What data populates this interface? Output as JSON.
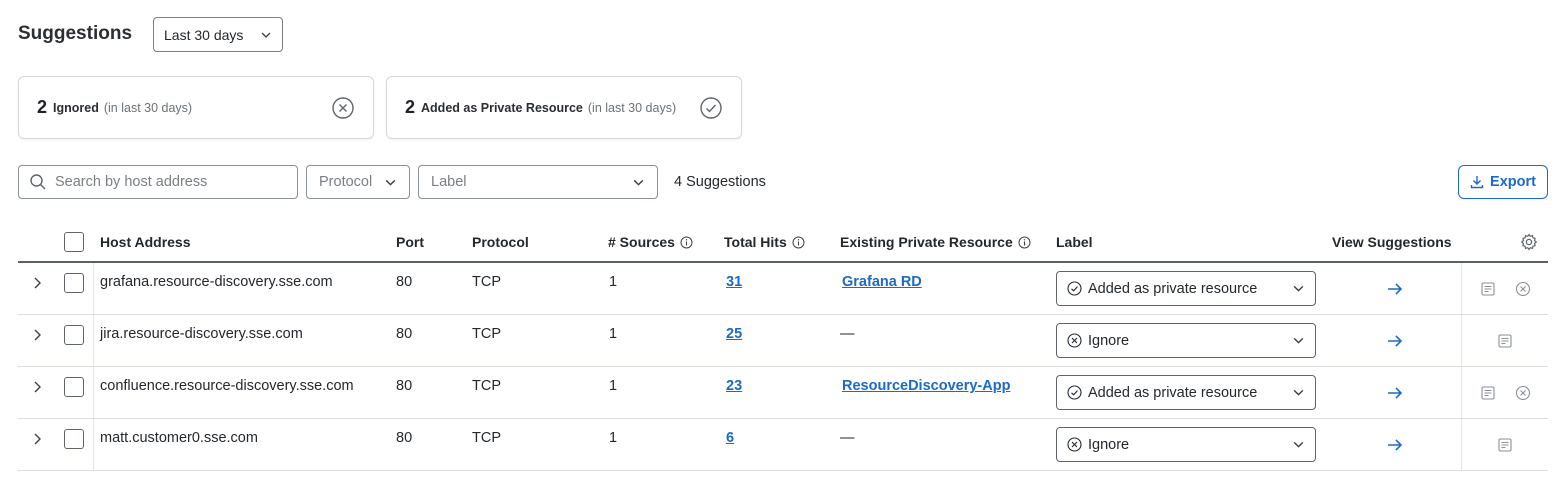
{
  "header": {
    "title": "Suggestions",
    "range_value": "Last 30 days"
  },
  "summary": {
    "ignored": {
      "count": "2",
      "label": "Ignored",
      "sub": "(in last 30 days)"
    },
    "added": {
      "count": "2",
      "label": "Added as Private Resource",
      "sub": "(in last 30 days)"
    }
  },
  "filters": {
    "search_placeholder": "Search by host address",
    "protocol_placeholder": "Protocol",
    "label_placeholder": "Label",
    "result_count": "4 Suggestions",
    "export_label": "Export"
  },
  "table": {
    "columns": {
      "host": "Host Address",
      "port": "Port",
      "protocol": "Protocol",
      "sources": "# Sources",
      "hits": "Total Hits",
      "existing": "Existing Private Resource",
      "label": "Label",
      "view": "View Suggestions"
    },
    "rows": [
      {
        "host": "grafana.resource-discovery.sse.com",
        "port": "80",
        "protocol": "TCP",
        "sources": "1",
        "hits": "31",
        "existing": "Grafana RD",
        "label": "Added as private resource",
        "label_state": "added"
      },
      {
        "host": "jira.resource-discovery.sse.com",
        "port": "80",
        "protocol": "TCP",
        "sources": "1",
        "hits": "25",
        "existing": "—",
        "label": "Ignore",
        "label_state": "ignored"
      },
      {
        "host": "confluence.resource-discovery.sse.com",
        "port": "80",
        "protocol": "TCP",
        "sources": "1",
        "hits": "23",
        "existing": "ResourceDiscovery-App",
        "label": "Added as private resource",
        "label_state": "added"
      },
      {
        "host": "matt.customer0.sse.com",
        "port": "80",
        "protocol": "TCP",
        "sources": "1",
        "hits": "6",
        "existing": "—",
        "label": "Ignore",
        "label_state": "ignored"
      }
    ]
  },
  "colors": {
    "accent": "#1b6ac9",
    "text": "#23282d",
    "muted": "#7a7f85"
  }
}
